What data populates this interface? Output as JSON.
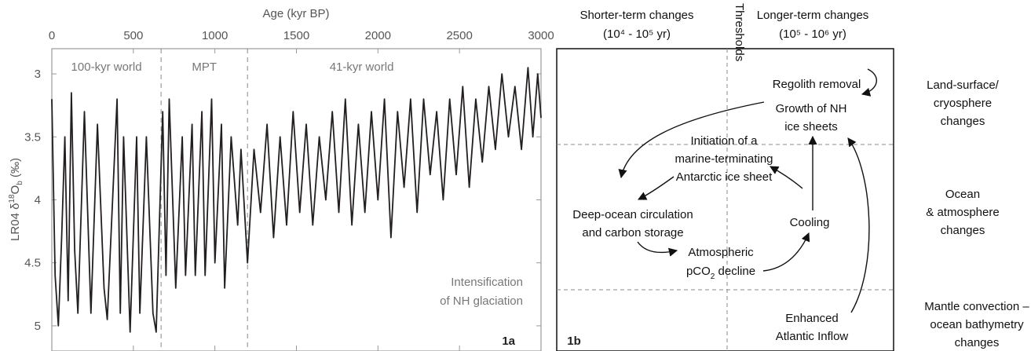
{
  "chart_data": [
    {
      "type": "line",
      "panel_label": "1a",
      "xlabel": "Age (kyr BP)",
      "ylabel_prefix": "LR04 δ",
      "ylabel_sup": "18",
      "ylabel_main": "O",
      "ylabel_sub": "b",
      "ylabel_suffix": " (‰)",
      "xlim": [
        0,
        3000
      ],
      "ylim": [
        5.2,
        2.8
      ],
      "y_reversed": true,
      "x_ticks": [
        "0",
        "500",
        "1000",
        "1500",
        "2000",
        "2500",
        "3000"
      ],
      "y_ticks": [
        "3",
        "3.5",
        "4",
        "4.5",
        "5"
      ],
      "boundaries": [
        670,
        1200
      ],
      "regions": [
        {
          "label": "100-kyr world",
          "x_center": 335
        },
        {
          "label": "MPT",
          "x_center": 935
        },
        {
          "label": "41-kyr world",
          "x_center": 1900
        }
      ],
      "annotation": [
        "Intensification",
        "of NH glaciation"
      ],
      "series": [
        {
          "color": "#231f20",
          "x": [
            0,
            20,
            40,
            60,
            80,
            100,
            120,
            140,
            160,
            200,
            240,
            280,
            320,
            340,
            400,
            420,
            440,
            480,
            520,
            540,
            580,
            620,
            640,
            680,
            700,
            720,
            760,
            800,
            820,
            860,
            880,
            920,
            940,
            980,
            1000,
            1040,
            1060,
            1100,
            1140,
            1160,
            1200,
            1240,
            1280,
            1320,
            1360,
            1400,
            1440,
            1480,
            1520,
            1560,
            1600,
            1640,
            1680,
            1720,
            1760,
            1800,
            1840,
            1880,
            1920,
            1960,
            2000,
            2040,
            2080,
            2120,
            2160,
            2200,
            2240,
            2280,
            2320,
            2360,
            2400,
            2440,
            2480,
            2520,
            2560,
            2600,
            2640,
            2680,
            2720,
            2760,
            2800,
            2840,
            2880,
            2920,
            2950,
            2980,
            3000
          ],
          "values": [
            3.2,
            4.6,
            5.0,
            4.3,
            3.5,
            4.8,
            3.15,
            4.4,
            4.9,
            3.3,
            4.9,
            3.4,
            4.7,
            4.95,
            3.2,
            4.9,
            3.5,
            5.05,
            3.5,
            4.9,
            3.5,
            4.9,
            5.05,
            3.3,
            4.6,
            3.2,
            4.7,
            3.5,
            4.6,
            3.4,
            4.6,
            3.3,
            4.6,
            3.2,
            4.5,
            3.4,
            4.7,
            3.5,
            4.2,
            3.6,
            4.5,
            3.6,
            4.1,
            3.4,
            4.3,
            3.5,
            4.2,
            3.3,
            4.1,
            3.4,
            4.2,
            3.5,
            4.0,
            3.3,
            4.1,
            3.2,
            4.2,
            3.4,
            4.1,
            3.3,
            4.0,
            3.2,
            4.3,
            3.3,
            3.9,
            3.2,
            4.1,
            3.2,
            3.8,
            3.3,
            4.0,
            3.2,
            3.8,
            3.1,
            3.9,
            3.2,
            3.7,
            3.1,
            3.6,
            3.0,
            3.5,
            3.1,
            3.6,
            2.95,
            3.5,
            3.0,
            3.35
          ]
        }
      ]
    },
    {
      "type": "diagram",
      "panel_label": "1b",
      "header_left": [
        "Shorter-term changes",
        "(10⁴ - 10⁵ yr)"
      ],
      "header_mid": "Thresholds",
      "header_right": [
        "Longer-term changes",
        "(10⁵ - 10⁶ yr)"
      ],
      "nodes": {
        "regolith": "Regolith removal",
        "growth": [
          "Growth of NH",
          "ice sheets"
        ],
        "antarctic": [
          "Initiation of a",
          "marine-terminating",
          "Antarctic ice sheet"
        ],
        "deep_ocean": [
          "Deep-ocean circulation",
          "and carbon storage"
        ],
        "cooling": "Cooling",
        "atmos_1": "Atmospheric",
        "atmos_2_pre": "pCO",
        "atmos_2_sub": "2",
        "atmos_2_post": " decline",
        "atlantic": [
          "Enhanced",
          "Atlantic Inflow"
        ]
      },
      "side_labels": {
        "land": [
          "Land-surface/",
          "cryosphere",
          "changes"
        ],
        "ocean": [
          "Ocean",
          "& atmosphere",
          "changes"
        ],
        "mantle": [
          "Mantle convection –",
          "ocean bathymetry",
          "changes"
        ]
      }
    }
  ]
}
